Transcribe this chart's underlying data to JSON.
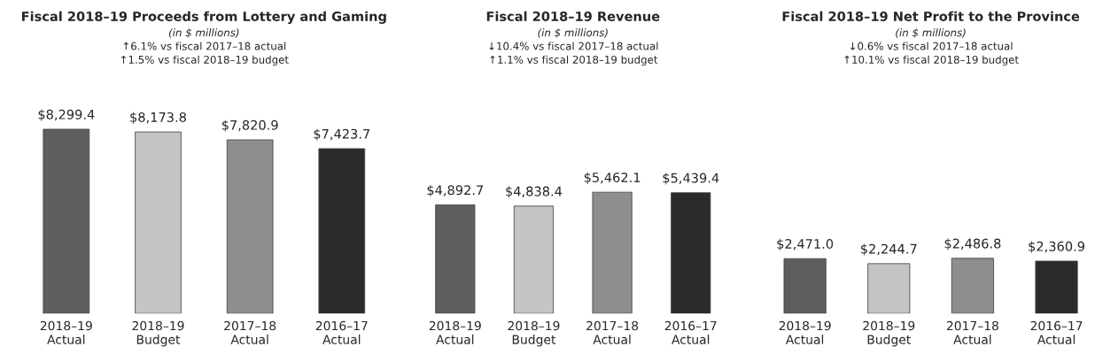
{
  "chart_data": [
    {
      "type": "bar",
      "title": "Fiscal 2018–19 Proceeds from Lottery and Gaming",
      "subtitle": "(in $ millions)",
      "annotations": [
        "↑6.1% vs fiscal 2017–18 actual",
        "↑1.5% vs fiscal 2018–19 budget"
      ],
      "categories": [
        "2018–19\nActual",
        "2018–19\nBudget",
        "2017–18\nActual",
        "2016–17\nActual"
      ],
      "values": [
        8299.4,
        8173.8,
        7820.9,
        7423.7
      ],
      "colors": [
        "#5e5e5e",
        "#c4c4c4",
        "#8e8e8e",
        "#2b2b2b"
      ],
      "value_labels": [
        "$8,299.4",
        "$8,173.8",
        "$7,820.9",
        "$7,423.7"
      ]
    },
    {
      "type": "bar",
      "title": "Fiscal 2018–19 Revenue",
      "subtitle": "(in $ millions)",
      "annotations": [
        "↓10.4% vs fiscal 2017–18 actual",
        "↑1.1% vs fiscal 2018–19 budget"
      ],
      "categories": [
        "2018–19\nActual",
        "2018–19\nBudget",
        "2017–18\nActual",
        "2016–17\nActual"
      ],
      "values": [
        4892.7,
        4838.4,
        5462.1,
        5439.4
      ],
      "colors": [
        "#5e5e5e",
        "#c4c4c4",
        "#8e8e8e",
        "#2b2b2b"
      ],
      "value_labels": [
        "$4,892.7",
        "$4,838.4",
        "$5,462.1",
        "$5,439.4"
      ]
    },
    {
      "type": "bar",
      "title": "Fiscal 2018–19 Net Profit to the Province",
      "subtitle": "(in $ millions)",
      "annotations": [
        "↓0.6% vs fiscal 2017–18 actual",
        "↑10.1% vs fiscal 2018–19 budget"
      ],
      "categories": [
        "2018–19\nActual",
        "2018–19\nBudget",
        "2017–18\nActual",
        "2016–17\nActual"
      ],
      "values": [
        2471.0,
        2244.7,
        2486.8,
        2360.9
      ],
      "colors": [
        "#5e5e5e",
        "#c4c4c4",
        "#8e8e8e",
        "#2b2b2b"
      ],
      "value_labels": [
        "$2,471.0",
        "$2,244.7",
        "$2,486.8",
        "$2,360.9"
      ]
    }
  ]
}
